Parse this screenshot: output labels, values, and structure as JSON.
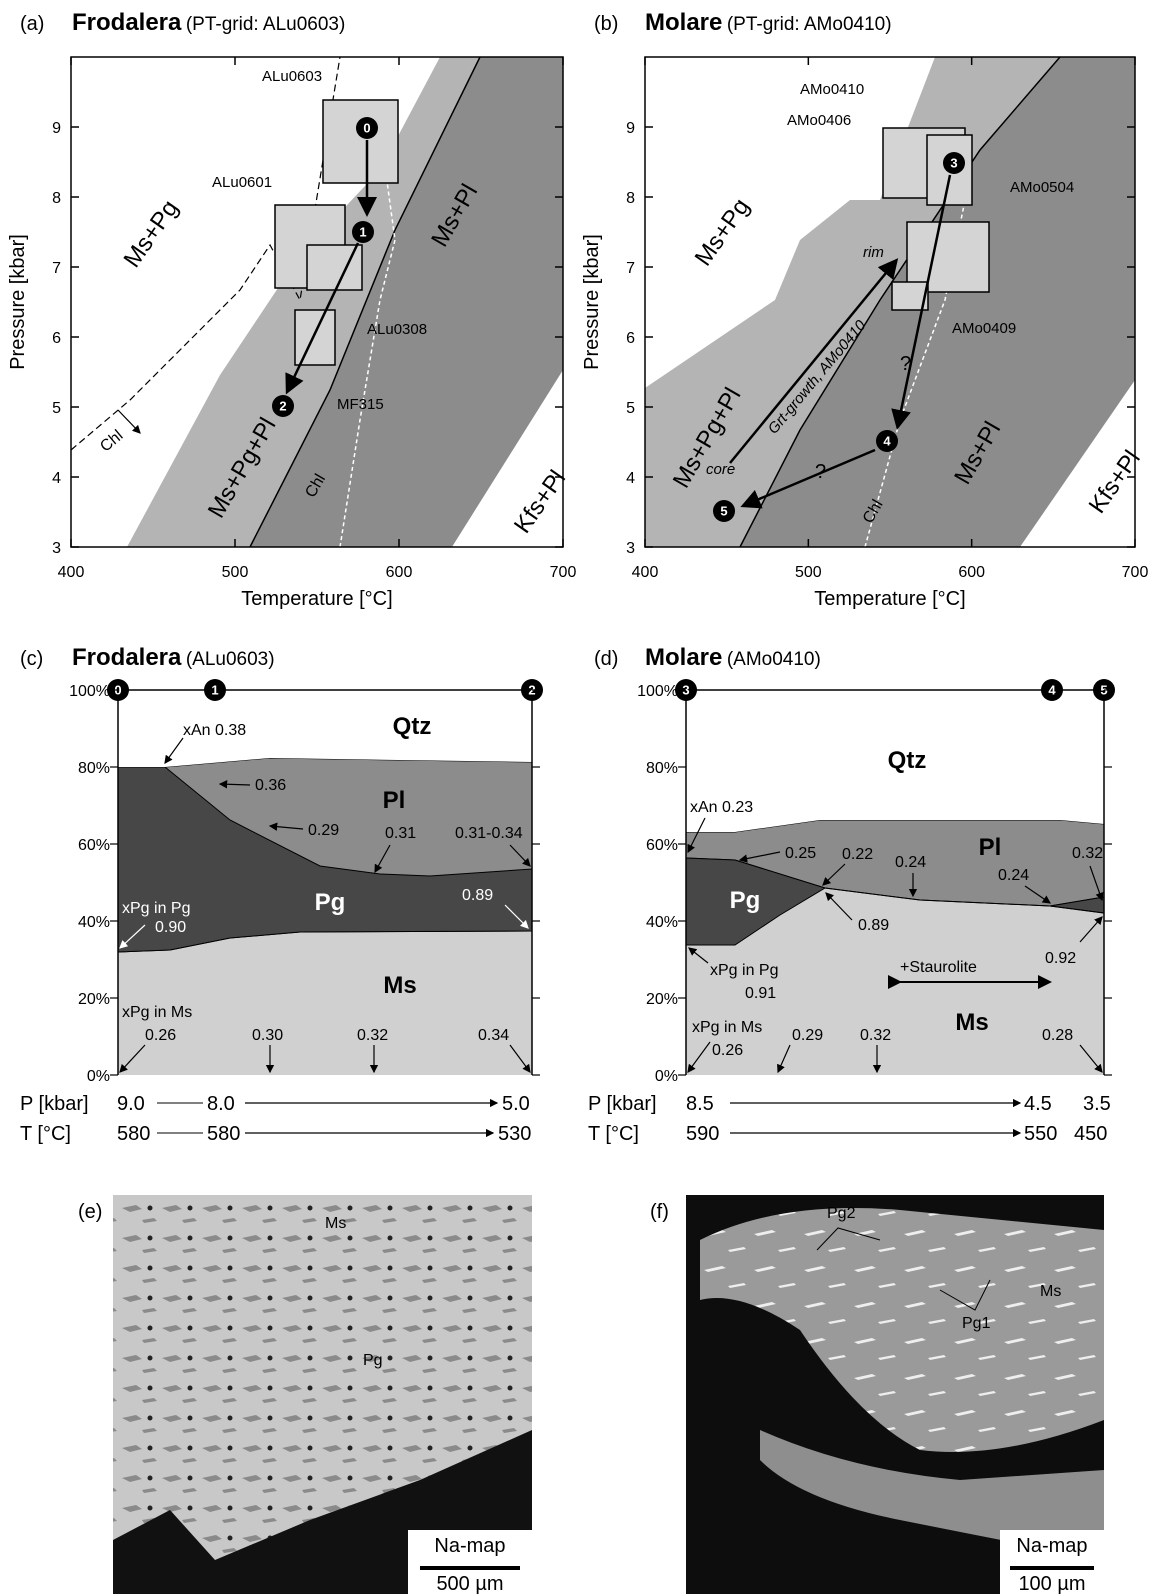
{
  "panels": [
    {
      "label": "(a)",
      "title": "Frodalera",
      "subtitle": "(PT-grid: ALu0603)",
      "xlabel": "Temperature [°C]",
      "ylabel": "Pressure [kbar]",
      "xlim": [
        400,
        700
      ],
      "ylim": [
        3,
        10
      ],
      "xticks": [
        400,
        500,
        600,
        700
      ],
      "yticks": [
        3,
        4,
        5,
        6,
        7,
        8,
        9
      ],
      "fields": [
        "Ms+Pg",
        "Ms+Pg+Pl",
        "Ms+Pl",
        "Kfs+Pl"
      ],
      "samples": [
        "ALu0603",
        "ALu0601",
        "ALu0308",
        "MF315"
      ],
      "points": [
        "0",
        "1",
        "2"
      ],
      "notes": [
        "Chl",
        "Chl"
      ]
    },
    {
      "label": "(b)",
      "title": "Molare",
      "subtitle": "(PT-grid: AMo0410)",
      "xlabel": "Temperature [°C]",
      "ylabel": "Pressure [kbar]",
      "xlim": [
        400,
        700
      ],
      "ylim": [
        3,
        10
      ],
      "xticks": [
        400,
        500,
        600,
        700
      ],
      "yticks": [
        3,
        4,
        5,
        6,
        7,
        8,
        9
      ],
      "fields": [
        "Ms+Pg",
        "Ms+Pg+Pl",
        "Ms+Pl",
        "Kfs+Pl"
      ],
      "samples": [
        "AMo0410",
        "AMo0406",
        "AMo0504",
        "AMo0409"
      ],
      "points": [
        "3",
        "4",
        "5"
      ],
      "notes": [
        "Chl",
        "Grt-growth, AMo0410",
        "rim",
        "core",
        "?",
        "?"
      ]
    },
    {
      "label": "(c)",
      "title": "Frodalera",
      "subtitle": "(ALu0603)",
      "ylim": [
        0,
        100
      ],
      "yticks": [
        {
          "value": 0,
          "label": "0%"
        },
        {
          "value": 20,
          "label": "20%"
        },
        {
          "value": 40,
          "label": "40%"
        },
        {
          "value": 60,
          "label": "60%"
        },
        {
          "value": 80,
          "label": "80%"
        },
        {
          "value": 100,
          "label": "100%"
        }
      ],
      "points": [
        "0",
        "1",
        "2"
      ],
      "phases": [
        "Qtz",
        "Pl",
        "Pg",
        "Ms"
      ],
      "notes": [
        "xAn 0.38",
        "0.36",
        "0.29",
        "0.31",
        "0.31-0.34",
        "xPg in Pg",
        "0.90",
        "0.89",
        "xPg in Ms",
        "0.26",
        "0.30",
        "0.32",
        "0.34"
      ],
      "rows": [
        [
          "P [kbar]",
          "9.0",
          "8.0",
          "5.0"
        ],
        [
          "T [°C]",
          "580",
          "580",
          "530"
        ]
      ]
    },
    {
      "label": "(d)",
      "title": "Molare",
      "subtitle": "(AMo0410)",
      "ylim": [
        0,
        100
      ],
      "yticks": [
        {
          "value": 0,
          "label": "0%"
        },
        {
          "value": 20,
          "label": "20%"
        },
        {
          "value": 40,
          "label": "40%"
        },
        {
          "value": 60,
          "label": "60%"
        },
        {
          "value": 80,
          "label": "80%"
        },
        {
          "value": 100,
          "label": "100%"
        }
      ],
      "points": [
        "3",
        "4",
        "5"
      ],
      "phases": [
        "Qtz",
        "Pl",
        "Pg",
        "Ms"
      ],
      "notes": [
        "xAn 0.23",
        "0.25",
        "0.22",
        "0.24",
        "0.24",
        "0.32",
        "0.89",
        "xPg in Pg",
        "0.91",
        "+Staurolite",
        "0.92",
        "xPg in Ms",
        "0.26",
        "0.29",
        "0.32",
        "0.28"
      ],
      "rows": [
        [
          "P [kbar]",
          "8.5",
          "4.5",
          "3.5"
        ],
        [
          "T [°C]",
          "590",
          "550",
          "450"
        ]
      ]
    },
    {
      "label": "(e)",
      "minerals": [
        "Ms",
        "Pg"
      ],
      "map": "Na-map",
      "scale": "500 µm"
    },
    {
      "label": "(f)",
      "minerals": [
        "Pg2",
        "Pg1",
        "Ms"
      ],
      "map": "Na-map",
      "scale": "100 µm"
    }
  ]
}
